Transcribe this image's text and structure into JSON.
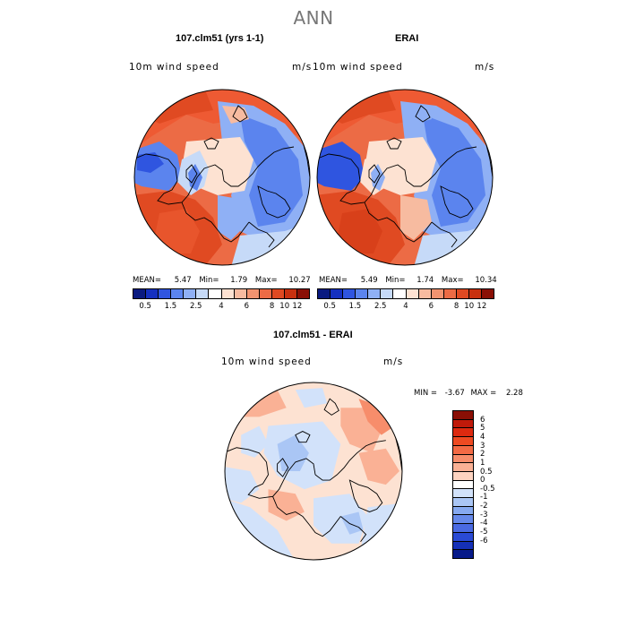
{
  "figure": {
    "suptitle": "ANN",
    "panel1": {
      "title": "107.clm51 (yrs 1-1)",
      "field": "10m wind speed",
      "units": "m/s",
      "mean_label": "MEAN=",
      "mean": "5.47",
      "min_label": "Min=",
      "min": "1.79",
      "max_label": "Max=",
      "max": "10.27"
    },
    "panel2": {
      "title": "ERAI",
      "field": "10m wind speed",
      "units": "m/s",
      "mean_label": "MEAN=",
      "mean": "5.49",
      "min_label": "Min=",
      "min": "1.74",
      "max_label": "Max=",
      "max": "10.34"
    },
    "panel3": {
      "title": "107.clm51 - ERAI",
      "field": "10m wind speed",
      "units": "m/s",
      "min_label": "MIN =",
      "min": "-3.67",
      "max_label": "MAX =",
      "max": "2.28"
    },
    "colorbar_abs": {
      "colors": [
        "#0a1a80",
        "#1530c0",
        "#2f55e0",
        "#5b84ee",
        "#8fb0f5",
        "#c6daf8",
        "#ffffff",
        "#fde2d2",
        "#f7bba0",
        "#f29370",
        "#ec6b45",
        "#e04a22",
        "#c8300f",
        "#8a0f05"
      ],
      "ticks": [
        "0.5",
        "1.5",
        "2.5",
        "4",
        "6",
        "8",
        "10",
        "12"
      ]
    },
    "colorbar_diff": {
      "colors": [
        "#8a0f05",
        "#c01a0a",
        "#dd2a10",
        "#ee4a22",
        "#f36a45",
        "#f78d6b",
        "#fab195",
        "#fdd3c0",
        "#ffffff",
        "#d2e2fa",
        "#aac6f5",
        "#86a9f0",
        "#6689ea",
        "#4a6ae2",
        "#2a4ad5",
        "#1530b8",
        "#071a8a"
      ],
      "ticks": [
        "6",
        "5",
        "4",
        "3",
        "2",
        "1",
        "0.5",
        "0",
        "-0.5",
        "-1",
        "-2",
        "-3",
        "-4",
        "-5",
        "-6"
      ]
    }
  }
}
